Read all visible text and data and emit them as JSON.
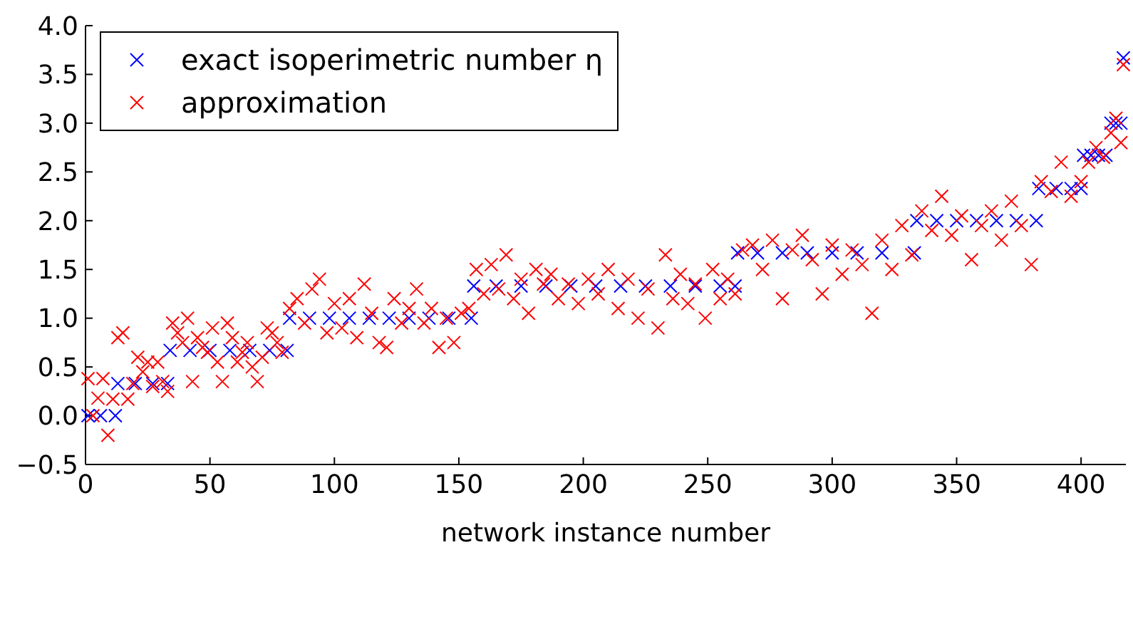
{
  "chart_data": {
    "type": "scatter",
    "xlabel": "network instance number",
    "xlim": [
      0,
      418
    ],
    "xticks": [
      0,
      50,
      100,
      150,
      200,
      250,
      300,
      350,
      400
    ],
    "ylim": [
      -0.5,
      4.0
    ],
    "yticks": [
      {
        "value": -0.5,
        "label": "−0.5"
      },
      {
        "value": 0,
        "label": "0.0"
      },
      {
        "value": 0.5,
        "label": "0.5"
      },
      {
        "value": 1,
        "label": "1.0"
      },
      {
        "value": 1.5,
        "label": "1.5"
      },
      {
        "value": 2,
        "label": "2.0"
      },
      {
        "value": 2.5,
        "label": "2.5"
      },
      {
        "value": 3,
        "label": "3.0"
      },
      {
        "value": 3.5,
        "label": "3.5"
      },
      {
        "value": 4,
        "label": "4.0"
      }
    ],
    "legend": "top left",
    "grid": false,
    "marker": "cross",
    "series": [
      {
        "name": "exact isoperimetric number η",
        "color": "#0000ff",
        "x": [
          1,
          6,
          12,
          13,
          20,
          27,
          33,
          34,
          42,
          50,
          58,
          66,
          74,
          81,
          82,
          90,
          98,
          106,
          114,
          122,
          130,
          138,
          146,
          155,
          156,
          165,
          175,
          185,
          195,
          205,
          215,
          225,
          235,
          245,
          255,
          261,
          262,
          270,
          280,
          290,
          300,
          310,
          320,
          333,
          334,
          342,
          350,
          358,
          366,
          374,
          382,
          383,
          390,
          396,
          400,
          401,
          404,
          407,
          410,
          412,
          414,
          416,
          417
        ],
        "values": [
          0,
          0,
          0,
          0.33,
          0.33,
          0.33,
          0.33,
          0.67,
          0.67,
          0.67,
          0.67,
          0.67,
          0.67,
          0.67,
          1,
          1,
          1,
          1,
          1,
          1,
          1,
          1,
          1,
          1,
          1.33,
          1.33,
          1.33,
          1.33,
          1.33,
          1.33,
          1.33,
          1.33,
          1.33,
          1.33,
          1.33,
          1.33,
          1.67,
          1.67,
          1.67,
          1.67,
          1.67,
          1.67,
          1.67,
          1.67,
          2,
          2,
          2,
          2,
          2,
          2,
          2,
          2.33,
          2.33,
          2.33,
          2.33,
          2.67,
          2.67,
          2.67,
          2.67,
          3,
          3,
          3,
          3.67
        ]
      },
      {
        "name": "approximation",
        "color": "#ff0000",
        "x": [
          1,
          3,
          5,
          7,
          9,
          11,
          13,
          15,
          17,
          19,
          21,
          23,
          25,
          27,
          29,
          31,
          33,
          35,
          37,
          39,
          41,
          43,
          45,
          47,
          49,
          51,
          53,
          55,
          57,
          59,
          61,
          63,
          65,
          67,
          69,
          71,
          73,
          75,
          77,
          79,
          82,
          85,
          88,
          91,
          94,
          97,
          100,
          103,
          106,
          109,
          112,
          115,
          118,
          121,
          124,
          127,
          130,
          133,
          136,
          139,
          142,
          145,
          148,
          151,
          154,
          157,
          160,
          163,
          166,
          169,
          172,
          175,
          178,
          181,
          184,
          187,
          190,
          194,
          198,
          202,
          206,
          210,
          214,
          218,
          222,
          226,
          230,
          233,
          236,
          239,
          242,
          245,
          249,
          252,
          255,
          258,
          261,
          264,
          268,
          272,
          276,
          280,
          284,
          288,
          292,
          296,
          300,
          304,
          308,
          312,
          316,
          320,
          324,
          328,
          332,
          336,
          340,
          344,
          348,
          352,
          356,
          360,
          364,
          368,
          372,
          376,
          380,
          384,
          388,
          392,
          396,
          400,
          403,
          406,
          409,
          412,
          414,
          416,
          417
        ],
        "values": [
          0.38,
          0,
          0.18,
          0.38,
          -0.2,
          0.17,
          0.8,
          0.85,
          0.17,
          0.33,
          0.6,
          0.45,
          0.55,
          0.3,
          0.55,
          0.35,
          0.25,
          0.95,
          0.85,
          0.75,
          1.0,
          0.35,
          0.8,
          0.7,
          0.65,
          0.9,
          0.55,
          0.35,
          0.95,
          0.8,
          0.55,
          0.65,
          0.75,
          0.5,
          0.35,
          0.6,
          0.9,
          0.85,
          0.75,
          0.65,
          1.1,
          1.2,
          0.95,
          1.3,
          1.4,
          0.85,
          1.15,
          0.9,
          1.2,
          0.8,
          1.35,
          1.05,
          0.75,
          0.7,
          1.2,
          0.95,
          1.1,
          1.3,
          0.95,
          1.1,
          0.7,
          1.0,
          0.75,
          1.05,
          1.1,
          1.5,
          1.25,
          1.55,
          1.3,
          1.65,
          1.2,
          1.4,
          1.05,
          1.5,
          1.35,
          1.45,
          1.2,
          1.35,
          1.15,
          1.4,
          1.25,
          1.5,
          1.1,
          1.4,
          1.0,
          1.3,
          0.9,
          1.65,
          1.2,
          1.45,
          1.15,
          1.35,
          1.0,
          1.5,
          1.2,
          1.4,
          1.25,
          1.7,
          1.75,
          1.5,
          1.8,
          1.2,
          1.7,
          1.85,
          1.6,
          1.25,
          1.75,
          1.45,
          1.7,
          1.55,
          1.05,
          1.8,
          1.5,
          1.95,
          1.65,
          2.1,
          1.9,
          2.25,
          1.85,
          2.05,
          1.6,
          1.95,
          2.1,
          1.8,
          2.2,
          1.95,
          1.55,
          2.4,
          2.3,
          2.6,
          2.25,
          2.4,
          2.6,
          2.75,
          2.65,
          2.9,
          3.05,
          2.8,
          3.6
        ]
      }
    ]
  }
}
